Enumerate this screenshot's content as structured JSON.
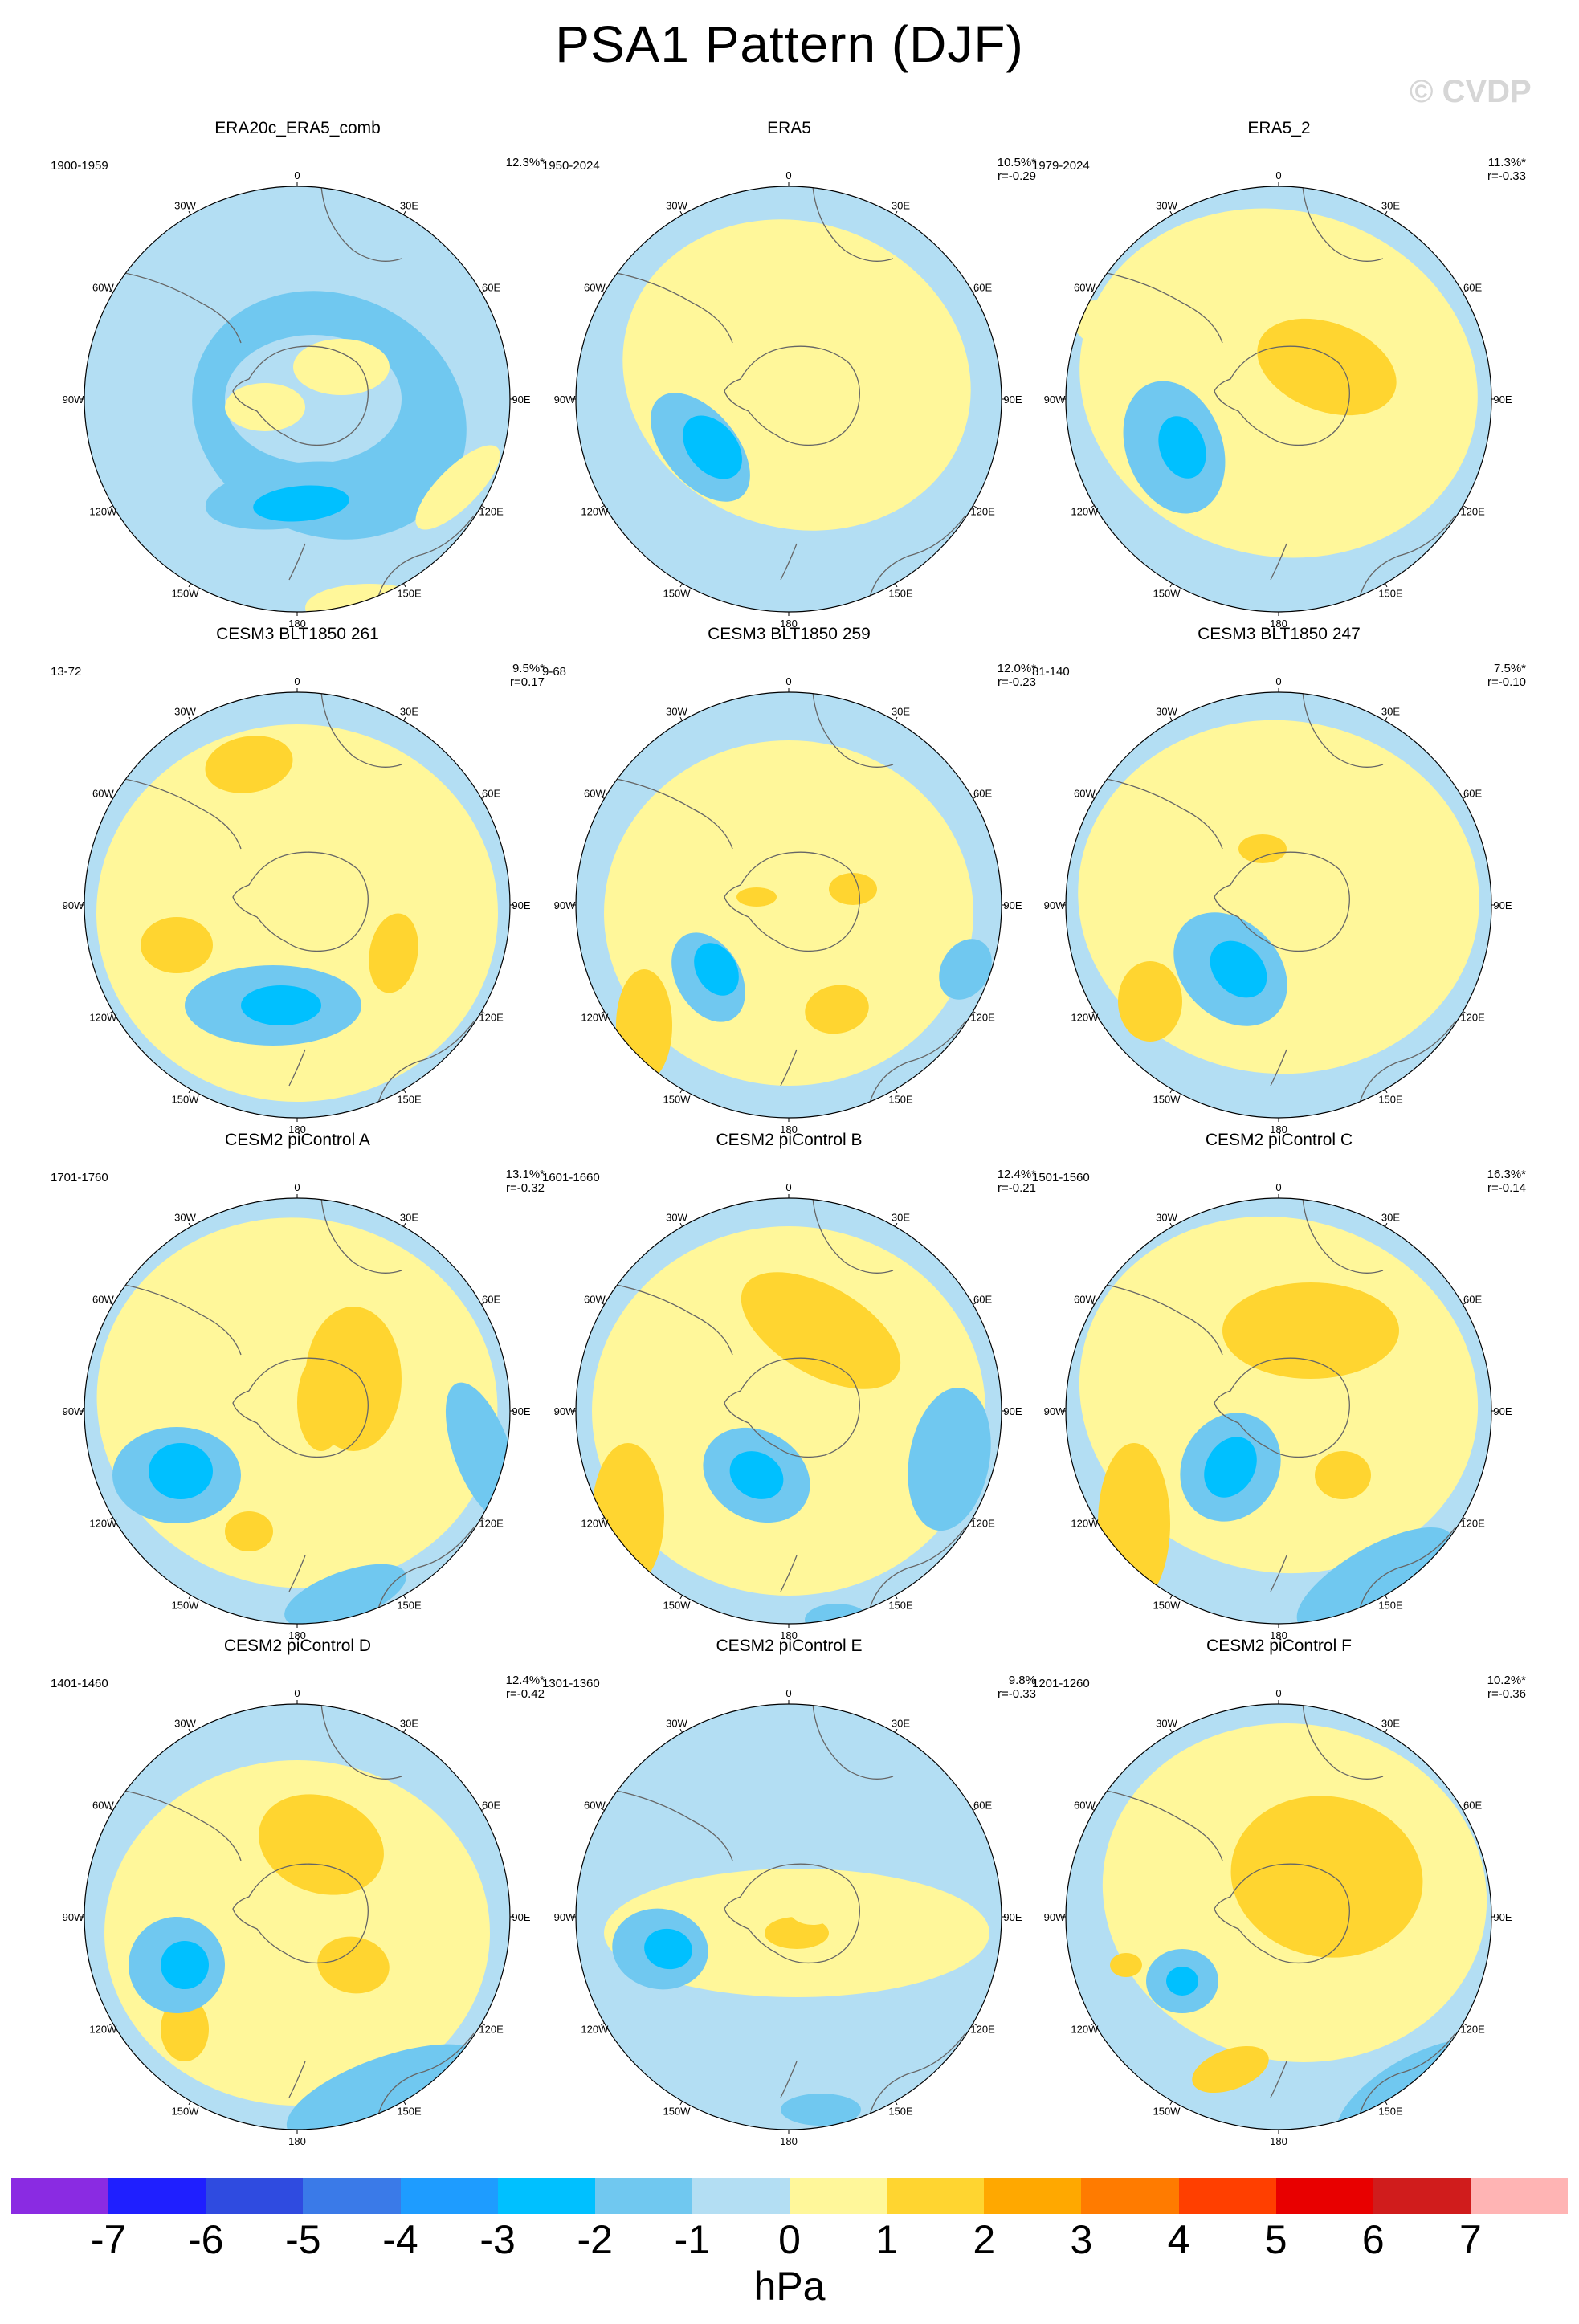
{
  "title": "PSA1 Pattern (DJF)",
  "watermark": "© CVDP",
  "lon_labels": [
    "0",
    "30E",
    "60E",
    "90E",
    "120E",
    "150E",
    "180",
    "150W",
    "120W",
    "90W",
    "60W",
    "30W"
  ],
  "panels": [
    {
      "title": "ERA20c_ERA5_comb",
      "years": "1900-1959",
      "pct": "12.3%*",
      "r": ""
    },
    {
      "title": "ERA5",
      "years": "1950-2024",
      "pct": "10.5%*",
      "r": "r=-0.29"
    },
    {
      "title": "ERA5_2",
      "years": "1979-2024",
      "pct": "11.3%*",
      "r": "r=-0.33"
    },
    {
      "title": "CESM3 BLT1850 261",
      "years": "13-72",
      "pct": "9.5%*",
      "r": "r=0.17"
    },
    {
      "title": "CESM3 BLT1850 259",
      "years": "9-68",
      "pct": "12.0%*",
      "r": "r=-0.23"
    },
    {
      "title": "CESM3 BLT1850 247",
      "years": "81-140",
      "pct": "7.5%*",
      "r": "r=-0.10"
    },
    {
      "title": "CESM2 piControl A",
      "years": "1701-1760",
      "pct": "13.1%*",
      "r": "r=-0.32"
    },
    {
      "title": "CESM2 piControl B",
      "years": "1601-1660",
      "pct": "12.4%*",
      "r": "r=-0.21"
    },
    {
      "title": "CESM2 piControl C",
      "years": "1501-1560",
      "pct": "16.3%*",
      "r": "r=-0.14"
    },
    {
      "title": "CESM2 piControl D",
      "years": "1401-1460",
      "pct": "12.4%*",
      "r": "r=-0.42"
    },
    {
      "title": "CESM2 piControl E",
      "years": "1301-1360",
      "pct": "9.8%",
      "r": "r=-0.33"
    },
    {
      "title": "CESM2 piControl F",
      "years": "1201-1260",
      "pct": "10.2%*",
      "r": "r=-0.36"
    }
  ],
  "colorbar": {
    "colors": [
      "#8a2be2",
      "#1f1fff",
      "#2f4be0",
      "#3a7ae8",
      "#1e9cff",
      "#00c0ff",
      "#70c8f0",
      "#b3def3",
      "#fff79a",
      "#ffd530",
      "#ffa800",
      "#ff7b00",
      "#ff3f00",
      "#e80000",
      "#d01c1c",
      "#ffb4b4"
    ],
    "ticks": [
      "-7",
      "-6",
      "-5",
      "-4",
      "-3",
      "-2",
      "-1",
      "0",
      "1",
      "2",
      "3",
      "4",
      "5",
      "6",
      "7"
    ],
    "units": "hPa"
  }
}
